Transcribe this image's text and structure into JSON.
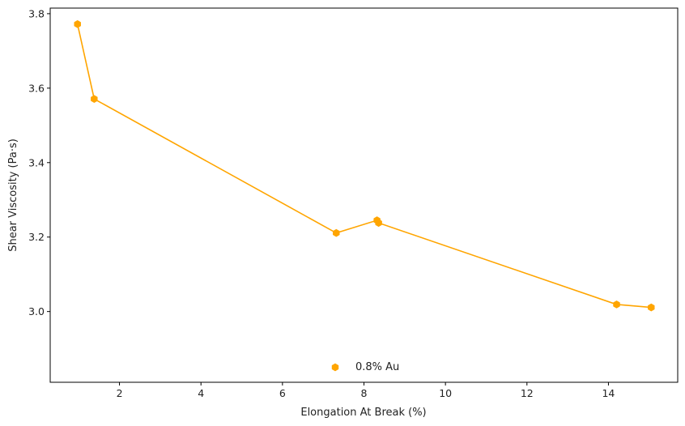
{
  "chart_data": {
    "type": "line",
    "title": "",
    "xlabel": "Elongation At Break (%)",
    "ylabel": "Shear Viscosity (Pa·s)",
    "xlim": [
      0.3,
      15.7
    ],
    "ylim": [
      2.81,
      3.815
    ],
    "xticks": [
      2,
      4,
      6,
      8,
      10,
      12,
      14
    ],
    "xtick_labels": [
      "2",
      "4",
      "6",
      "8",
      "10",
      "12",
      "14"
    ],
    "yticks": [
      3.0,
      3.2,
      3.4,
      3.6,
      3.8
    ],
    "ytick_labels": [
      "3.0",
      "3.2",
      "3.4",
      "3.6",
      "3.8"
    ],
    "grid": false,
    "legend_position": "bottom-center",
    "series": [
      {
        "name": "0.8% Au",
        "color": "#FFA500",
        "marker": "hexagon",
        "x": [
          0.97,
          1.38,
          7.32,
          8.32,
          8.36,
          14.2,
          15.05
        ],
        "y": [
          3.772,
          3.571,
          3.211,
          3.245,
          3.238,
          3.019,
          3.011
        ]
      }
    ]
  }
}
